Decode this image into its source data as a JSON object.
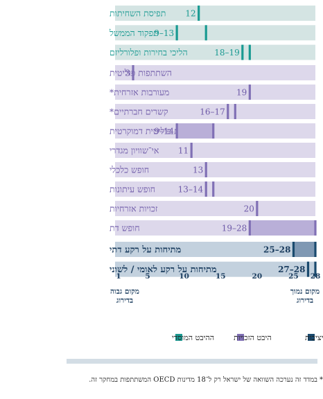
{
  "chart_data": {
    "type": "bar",
    "title": "",
    "xlabel": "",
    "ylabel": "",
    "xlim": [
      1,
      28
    ],
    "ticks": [
      1,
      5,
      10,
      15,
      20,
      25,
      28
    ],
    "axis_label_left": "מקום גבוה בדירוג",
    "axis_label_right": "מקום נמוך בדירוג",
    "groups": [
      {
        "type": "institutional",
        "rows": [
          {
            "label": "תפיסת השחיתות",
            "value_label": "12",
            "low": 12,
            "high": 12
          },
          {
            "label": "תפקוד הממשל",
            "value_label": "9–13",
            "low": 9,
            "high": 13
          },
          {
            "label": "הליכי בחירות ופלורליזם",
            "value_label": "18–19",
            "low": 18,
            "high": 19
          }
        ]
      },
      {
        "type": "rights",
        "rows": [
          {
            "label": "השתתפות פוליטית",
            "value_label": "3",
            "low": 3,
            "high": 3
          },
          {
            "label": "מעורבות אזרחית*",
            "value_label": "19",
            "low": 19,
            "high": 19
          },
          {
            "label": "קשרים חברתיים*",
            "value_label": "16–17",
            "low": 16,
            "high": 17
          },
          {
            "label": "תרבות פוליטית דמוקרטית",
            "value_label": "9–14",
            "low": 9,
            "high": 14
          },
          {
            "label": "אי־שוויון מגדרי",
            "value_label": "11",
            "low": 11,
            "high": 11
          },
          {
            "label": "חופש כלכלי",
            "value_label": "13",
            "low": 13,
            "high": 13
          },
          {
            "label": "חופש עיתונות",
            "value_label": "13–14",
            "low": 13,
            "high": 14
          },
          {
            "label": "זכויות אזרחיות",
            "value_label": "20",
            "low": 20,
            "high": 20
          },
          {
            "label": "חופש דת",
            "value_label": "19–28",
            "low": 19,
            "high": 28
          }
        ]
      },
      {
        "type": "stability",
        "rows": [
          {
            "label": "מתיחות על רקע דתי",
            "value_label": "25–28",
            "low": 25,
            "high": 28
          },
          {
            "label": "מתיחות על רקע לאומי / לשוני",
            "value_label": "27–28",
            "low": 27,
            "high": 28
          }
        ]
      }
    ],
    "legend": [
      {
        "key": "stability",
        "label": "היבט היציבות"
      },
      {
        "key": "rights",
        "label": "היבט הזכויות"
      },
      {
        "key": "institutional",
        "label": "ההיבט המוסדי"
      }
    ],
    "colors": {
      "institutional_bg": "#d4e4e3",
      "institutional_marker": "#1a9a92",
      "institutional_text": "#1a9a92",
      "rights_bg": "#ddd8eb",
      "rights_marker": "#8070b5",
      "rights_text": "#6e5aa8",
      "rights_range": "#b9afd8",
      "stability_bg": "#c3d1de",
      "stability_marker": "#1a4a6e",
      "stability_text": "#1a3c5e",
      "stability_range": "#7f98b3",
      "tick_text": "#1a3c5e"
    }
  },
  "footnote": {
    "star": "*",
    "text": "במדד זה נערכה השוואה של ישראל רק ל־18 מדינות OECD המשתתפות במחקר זה."
  }
}
